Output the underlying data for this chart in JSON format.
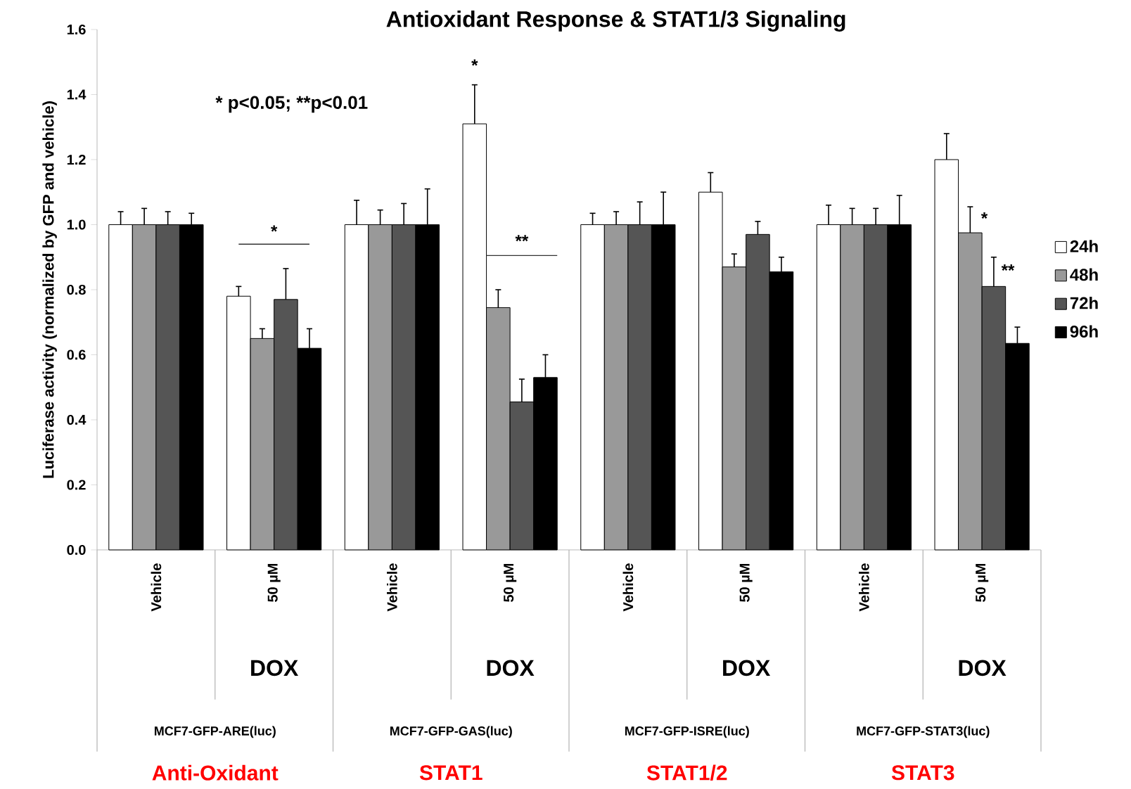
{
  "chart_data": {
    "type": "bar",
    "title": "Antioxidant Response & STAT1/3  Signaling",
    "ylabel": "Luciferase activity (normalized by GFP and vehicle)",
    "categories": [
      "Vehicle",
      "50 µM",
      "Vehicle",
      "50 µM",
      "Vehicle",
      "50 µM",
      "Vehicle",
      "50 µM"
    ],
    "series": [
      {
        "name": "24h",
        "color": "#ffffff",
        "values": [
          1.0,
          0.78,
          1.0,
          1.31,
          1.0,
          1.1,
          1.0,
          1.2
        ],
        "errors": [
          0.04,
          0.03,
          0.075,
          0.12,
          0.035,
          0.06,
          0.06,
          0.08
        ]
      },
      {
        "name": "48h",
        "color": "#999999",
        "values": [
          1.0,
          0.65,
          1.0,
          0.745,
          1.0,
          0.87,
          1.0,
          0.975
        ],
        "errors": [
          0.05,
          0.03,
          0.045,
          0.055,
          0.04,
          0.04,
          0.05,
          0.08
        ]
      },
      {
        "name": "72h",
        "color": "#555555",
        "values": [
          1.0,
          0.77,
          1.0,
          0.455,
          1.0,
          0.97,
          1.0,
          0.81
        ],
        "errors": [
          0.04,
          0.095,
          0.065,
          0.07,
          0.07,
          0.04,
          0.05,
          0.09
        ]
      },
      {
        "name": "96h",
        "color": "#000000",
        "values": [
          1.0,
          0.62,
          1.0,
          0.53,
          1.0,
          0.855,
          1.0,
          0.635
        ],
        "errors": [
          0.035,
          0.06,
          0.11,
          0.07,
          0.1,
          0.045,
          0.09,
          0.05
        ]
      }
    ],
    "ylim": [
      0,
      1.6
    ],
    "yticks": [
      {
        "value": 0,
        "label": "0.0"
      },
      0.2,
      0.4,
      0.6,
      0.8,
      {
        "value": 1,
        "label": "1.0"
      },
      1.2,
      1.4,
      1.6
    ],
    "legend": "right",
    "annotations": [
      "* p<0.05; **p<0.01",
      "*",
      "*",
      "**",
      "*",
      "**",
      "DOX",
      "DOX",
      "DOX",
      "DOX",
      "MCF7-GFP-ARE(luc)",
      "MCF7-GFP-GAS(luc)",
      "MCF7-GFP-ISRE(luc)",
      "MCF7-GFP-STAT3(luc)",
      "Anti-Oxidant",
      "STAT1",
      "STAT1/2",
      "STAT3"
    ]
  }
}
